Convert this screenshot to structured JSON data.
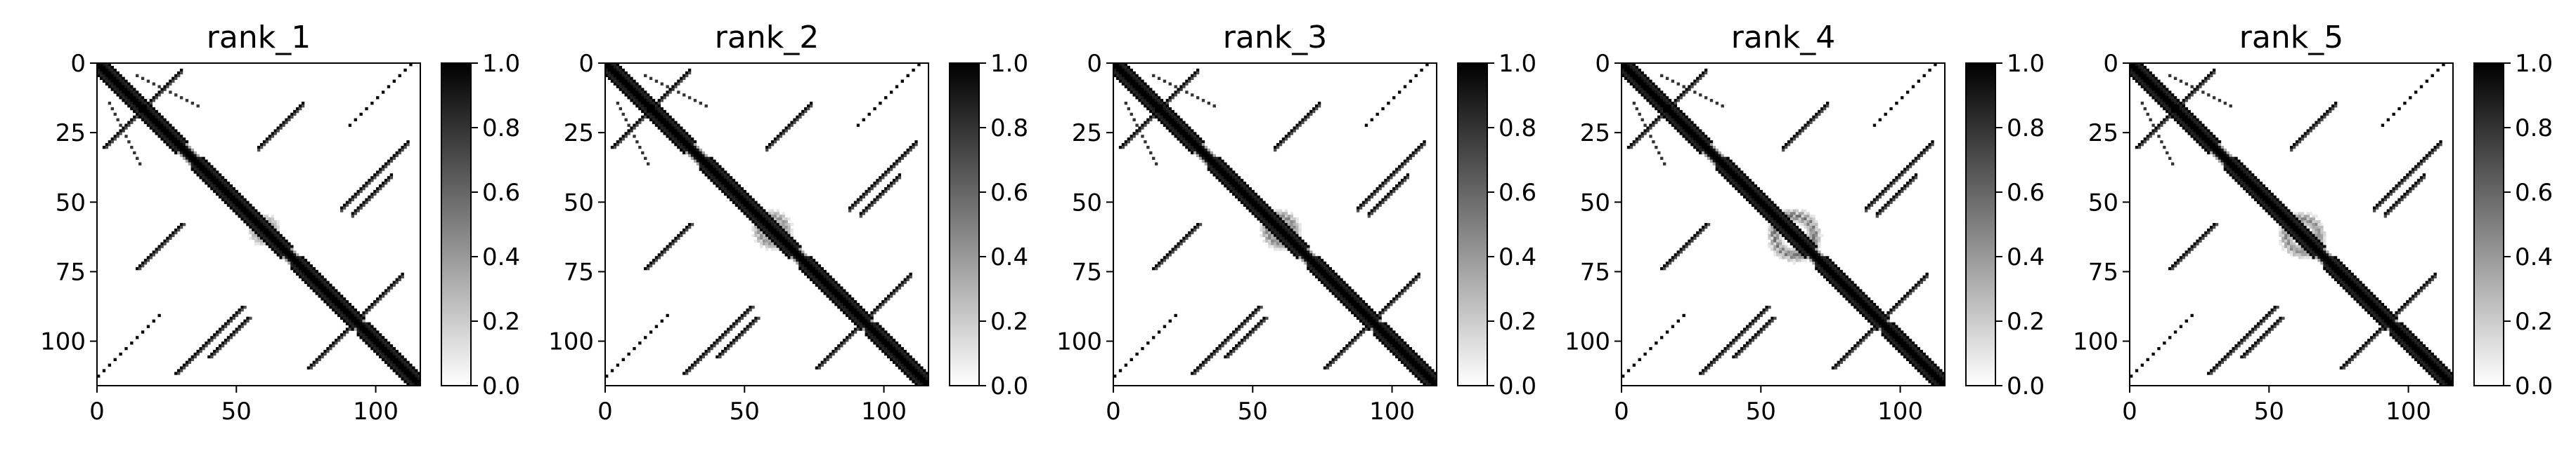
{
  "figure": {
    "colormap": "gray_r",
    "background": "#ffffff",
    "ink": "#000000"
  },
  "chart_data": [
    {
      "type": "heatmap",
      "title": "rank_1",
      "matrix_size": 117,
      "xlim": [
        0,
        116
      ],
      "ylim": [
        116,
        0
      ],
      "xticks": [
        0,
        50,
        100
      ],
      "yticks": [
        0,
        25,
        50,
        75,
        100
      ],
      "colorbar": {
        "range": [
          0.0,
          1.0
        ],
        "ticks": [
          "0.0",
          "0.2",
          "0.4",
          "0.6",
          "0.8",
          "1.0"
        ]
      },
      "features": {
        "main_diagonal": true,
        "helices": [
          [
            0,
            28,
            28
          ],
          [
            34,
            56,
            10
          ],
          [
            56,
            66,
            6
          ],
          [
            70,
            92,
            10
          ],
          [
            94,
            116,
            20
          ]
        ],
        "sheets": [
          [
            2,
            20,
            12,
            30
          ],
          [
            28,
            52,
            88,
            112
          ],
          [
            40,
            54,
            92,
            106
          ],
          [
            76,
            90,
            96,
            110
          ],
          [
            14,
            30,
            58,
            74
          ]
        ],
        "central_blob": [
          60,
          60,
          6,
          0.35
        ]
      }
    },
    {
      "type": "heatmap",
      "title": "rank_2",
      "matrix_size": 117,
      "xlim": [
        0,
        116
      ],
      "ylim": [
        116,
        0
      ],
      "xticks": [
        0,
        50,
        100
      ],
      "yticks": [
        0,
        25,
        50,
        75,
        100
      ],
      "colorbar": {
        "range": [
          0.0,
          1.0
        ],
        "ticks": [
          "0.0",
          "0.2",
          "0.4",
          "0.6",
          "0.8",
          "1.0"
        ]
      },
      "features": {
        "main_diagonal": true,
        "helices": [
          [
            0,
            28,
            28
          ],
          [
            34,
            56,
            10
          ],
          [
            56,
            66,
            6
          ],
          [
            70,
            92,
            10
          ],
          [
            94,
            116,
            20
          ]
        ],
        "sheets": [
          [
            2,
            20,
            12,
            30
          ],
          [
            28,
            52,
            88,
            112
          ],
          [
            40,
            54,
            92,
            106
          ],
          [
            76,
            90,
            96,
            110
          ],
          [
            14,
            30,
            58,
            74
          ]
        ],
        "central_blob": [
          60,
          60,
          8,
          0.45
        ]
      }
    },
    {
      "type": "heatmap",
      "title": "rank_3",
      "matrix_size": 117,
      "xlim": [
        0,
        116
      ],
      "ylim": [
        116,
        0
      ],
      "xticks": [
        0,
        50,
        100
      ],
      "yticks": [
        0,
        25,
        50,
        75,
        100
      ],
      "colorbar": {
        "range": [
          0.0,
          1.0
        ],
        "ticks": [
          "0.0",
          "0.2",
          "0.4",
          "0.6",
          "0.8",
          "1.0"
        ]
      },
      "features": {
        "main_diagonal": true,
        "helices": [
          [
            0,
            28,
            28
          ],
          [
            34,
            56,
            10
          ],
          [
            56,
            66,
            6
          ],
          [
            70,
            92,
            10
          ],
          [
            94,
            116,
            20
          ]
        ],
        "sheets": [
          [
            2,
            20,
            12,
            30
          ],
          [
            28,
            52,
            88,
            112
          ],
          [
            40,
            54,
            92,
            106
          ],
          [
            76,
            90,
            96,
            110
          ],
          [
            14,
            30,
            58,
            74
          ]
        ],
        "central_blob": [
          60,
          60,
          8,
          0.5
        ]
      }
    },
    {
      "type": "heatmap",
      "title": "rank_4",
      "matrix_size": 117,
      "xlim": [
        0,
        116
      ],
      "ylim": [
        116,
        0
      ],
      "xticks": [
        0,
        50,
        100
      ],
      "yticks": [
        0,
        25,
        50,
        75,
        100
      ],
      "colorbar": {
        "range": [
          0.0,
          1.0
        ],
        "ticks": [
          "0.0",
          "0.2",
          "0.4",
          "0.6",
          "0.8",
          "1.0"
        ]
      },
      "features": {
        "main_diagonal": true,
        "helices": [
          [
            0,
            28,
            28
          ],
          [
            34,
            56,
            10
          ],
          [
            56,
            66,
            6
          ],
          [
            70,
            92,
            10
          ],
          [
            94,
            116,
            20
          ]
        ],
        "sheets": [
          [
            2,
            20,
            12,
            30
          ],
          [
            28,
            52,
            88,
            112
          ],
          [
            40,
            54,
            92,
            106
          ],
          [
            76,
            90,
            96,
            110
          ],
          [
            14,
            30,
            58,
            74
          ]
        ],
        "central_blob": [
          62,
          62,
          12,
          0.6
        ]
      }
    },
    {
      "type": "heatmap",
      "title": "rank_5",
      "matrix_size": 117,
      "xlim": [
        0,
        116
      ],
      "ylim": [
        116,
        0
      ],
      "xticks": [
        0,
        50,
        100
      ],
      "yticks": [
        0,
        25,
        50,
        75,
        100
      ],
      "colorbar": {
        "range": [
          0.0,
          1.0
        ],
        "ticks": [
          "0.0",
          "0.2",
          "0.4",
          "0.6",
          "0.8",
          "1.0"
        ]
      },
      "features": {
        "main_diagonal": true,
        "helices": [
          [
            0,
            28,
            28
          ],
          [
            34,
            56,
            10
          ],
          [
            56,
            66,
            6
          ],
          [
            70,
            92,
            10
          ],
          [
            94,
            116,
            20
          ]
        ],
        "sheets": [
          [
            2,
            20,
            12,
            30
          ],
          [
            28,
            52,
            88,
            112
          ],
          [
            40,
            54,
            92,
            106
          ],
          [
            76,
            90,
            96,
            110
          ],
          [
            14,
            30,
            58,
            74
          ]
        ],
        "central_blob": [
          62,
          62,
          10,
          0.5
        ]
      }
    }
  ]
}
